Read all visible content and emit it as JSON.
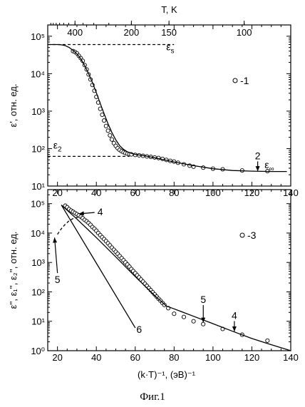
{
  "chart_data": [
    {
      "type": "scatter",
      "panel": "top",
      "ylabel": "ε', отн. ед.",
      "top_axis_title": "T, K",
      "top_axis_tick_labels": [
        "400",
        "200",
        "150",
        "100"
      ],
      "top_axis_tick_T_values": [
        400,
        200,
        150,
        100
      ],
      "xlim": [
        15,
        140
      ],
      "ylim": [
        10,
        200000
      ],
      "yscale": "log",
      "x_tick_labels": [
        "20",
        "40",
        "60",
        "80",
        "100",
        "120",
        "140"
      ],
      "x_tick_values": [
        20,
        40,
        60,
        80,
        100,
        120,
        140
      ],
      "y_tick_labels": [
        "10¹",
        "10²",
        "10³",
        "10⁴",
        "10⁵"
      ],
      "y_tick_values": [
        10,
        100,
        1000,
        10000,
        100000
      ],
      "legend_label": "-1",
      "series": [
        {
          "name": "-1",
          "kind": "markers-open-circle",
          "x": [
            28,
            29,
            30,
            31,
            32,
            33,
            34,
            35,
            36,
            37,
            38,
            39,
            40,
            41,
            42,
            43,
            44,
            45,
            46,
            47,
            48,
            49,
            50,
            51,
            52,
            53,
            54,
            55,
            56,
            57,
            58,
            60,
            62,
            64,
            66,
            68,
            70,
            72,
            74,
            76,
            78,
            80,
            82,
            85,
            88,
            90,
            95,
            100,
            105,
            115,
            128
          ],
          "y": [
            40000,
            38000,
            35000,
            30000,
            26000,
            22000,
            17000,
            13000,
            9500,
            7000,
            5000,
            3500,
            2400,
            1700,
            1150,
            800,
            560,
            400,
            300,
            225,
            175,
            140,
            118,
            102,
            92,
            85,
            80,
            76,
            73,
            71,
            70,
            68,
            66,
            64,
            62,
            60,
            58,
            56,
            53,
            50,
            47,
            45,
            42,
            38,
            35,
            33,
            31,
            29,
            28,
            26,
            25
          ]
        },
        {
          "name": "fit",
          "kind": "line-solid",
          "x": [
            15,
            20,
            22,
            24,
            26,
            28,
            30,
            32,
            34,
            36,
            38,
            40,
            42,
            44,
            46,
            48,
            50,
            52,
            54,
            56,
            58,
            60,
            65,
            70,
            75,
            80,
            90,
            100,
            110,
            120,
            130,
            138
          ],
          "y": [
            60000,
            60000,
            59000,
            56000,
            50000,
            42000,
            34000,
            25000,
            16500,
            10000,
            5800,
            3100,
            1600,
            850,
            460,
            270,
            170,
            120,
            95,
            82,
            75,
            70,
            64,
            57,
            50,
            44,
            35,
            29,
            26,
            25,
            24.5,
            24.5
          ]
        },
        {
          "name": "εs",
          "kind": "line-dashed",
          "x": [
            15,
            80
          ],
          "y": [
            60000,
            60000
          ]
        },
        {
          "name": "ε2",
          "kind": "line-dashed",
          "x": [
            15,
            57
          ],
          "y": [
            62,
            62
          ]
        }
      ],
      "annotations": [
        {
          "text": "ε",
          "sub": "s",
          "x": 78,
          "y": 42000
        },
        {
          "text": "ε",
          "sub": "2",
          "x": 20,
          "y": 100
        },
        {
          "text": "ε",
          "sub": "∞",
          "x": 129,
          "y": 30
        },
        {
          "text": "2",
          "x": 123,
          "y": 52,
          "arrow_to_x": 123,
          "arrow_to_y": 25
        }
      ]
    },
    {
      "type": "scatter",
      "panel": "bottom",
      "xlabel": "(k·T)⁻¹, (эВ)⁻¹",
      "ylabel": "ε'', ε₁'', ε₂'', отн. ед.",
      "xlim": [
        15,
        140
      ],
      "ylim": [
        1,
        300000
      ],
      "yscale": "log",
      "x_tick_labels": [
        "20",
        "40",
        "60",
        "80",
        "100",
        "120",
        "140"
      ],
      "x_tick_values": [
        20,
        40,
        60,
        80,
        100,
        120,
        140
      ],
      "y_tick_labels": [
        "10⁰",
        "10¹",
        "10²",
        "10³",
        "10⁴",
        "10⁵"
      ],
      "y_tick_values": [
        1,
        10,
        100,
        1000,
        10000,
        100000
      ],
      "legend_label": "-3",
      "series": [
        {
          "name": "-3",
          "kind": "markers-open-circle",
          "x": [
            24,
            25,
            26,
            27,
            28,
            29,
            30,
            31,
            32,
            33,
            34,
            35,
            36,
            37,
            38,
            39,
            40,
            41,
            42,
            43,
            44,
            45,
            46,
            47,
            48,
            49,
            50,
            51,
            52,
            53,
            54,
            55,
            56,
            57,
            58,
            59,
            60,
            61,
            62,
            63,
            64,
            65,
            66,
            67,
            68,
            69,
            70,
            71,
            72,
            73,
            74,
            75,
            77,
            80,
            85,
            90,
            95,
            105,
            115,
            128
          ],
          "y": [
            85000,
            75000,
            65000,
            58000,
            53000,
            48000,
            44000,
            40000,
            36000,
            32000,
            28000,
            25000,
            22000,
            19000,
            16000,
            14000,
            12000,
            10000,
            8500,
            7200,
            6200,
            5300,
            4500,
            3800,
            3200,
            2700,
            2300,
            1950,
            1650,
            1400,
            1180,
            1000,
            850,
            720,
            600,
            510,
            430,
            365,
            310,
            262,
            222,
            188,
            160,
            135,
            114,
            97,
            82,
            69,
            58,
            50,
            42,
            36,
            28,
            18,
            14,
            10,
            8,
            5.5,
            3.5,
            2.2
          ]
        },
        {
          "name": "fit",
          "kind": "line-solid",
          "x": [
            22,
            30,
            40,
            50,
            60,
            70,
            76,
            80,
            90,
            100,
            110,
            120,
            130,
            140
          ],
          "y": [
            90000,
            30000,
            7000,
            1550,
            330,
            75,
            33,
            26.5,
            14.8,
            8.3,
            4.6,
            2.6,
            1.6,
            1
          ]
        },
        {
          "name": "6",
          "kind": "line-solid",
          "x": [
            22,
            60
          ],
          "y": [
            90000,
            6
          ]
        },
        {
          "name": "5",
          "kind": "line-dashed",
          "x": [
            20,
            22,
            24,
            26,
            28,
            30,
            32
          ],
          "y": [
            9000,
            14000,
            20000,
            26000,
            31000,
            34000,
            35000
          ]
        }
      ],
      "annotations": [
        {
          "text": "4",
          "x": 42,
          "y": 40000,
          "arrow_to_x": 31,
          "arrow_to_y": 45000
        },
        {
          "text": "5",
          "x": 20,
          "y": 200,
          "arrow_to_x": 18.5,
          "arrow_to_y": 7000
        },
        {
          "text": "6",
          "x": 62,
          "y": 4,
          "arrow_to_x": null,
          "arrow_to_y": null
        },
        {
          "text": "5",
          "x": 95,
          "y": 42,
          "arrow_to_x": 95,
          "arrow_to_y": 9
        },
        {
          "text": "4",
          "x": 111,
          "y": 12,
          "arrow_to_x": 111,
          "arrow_to_y": 4.5
        }
      ]
    }
  ],
  "caption": "Фиг.1"
}
